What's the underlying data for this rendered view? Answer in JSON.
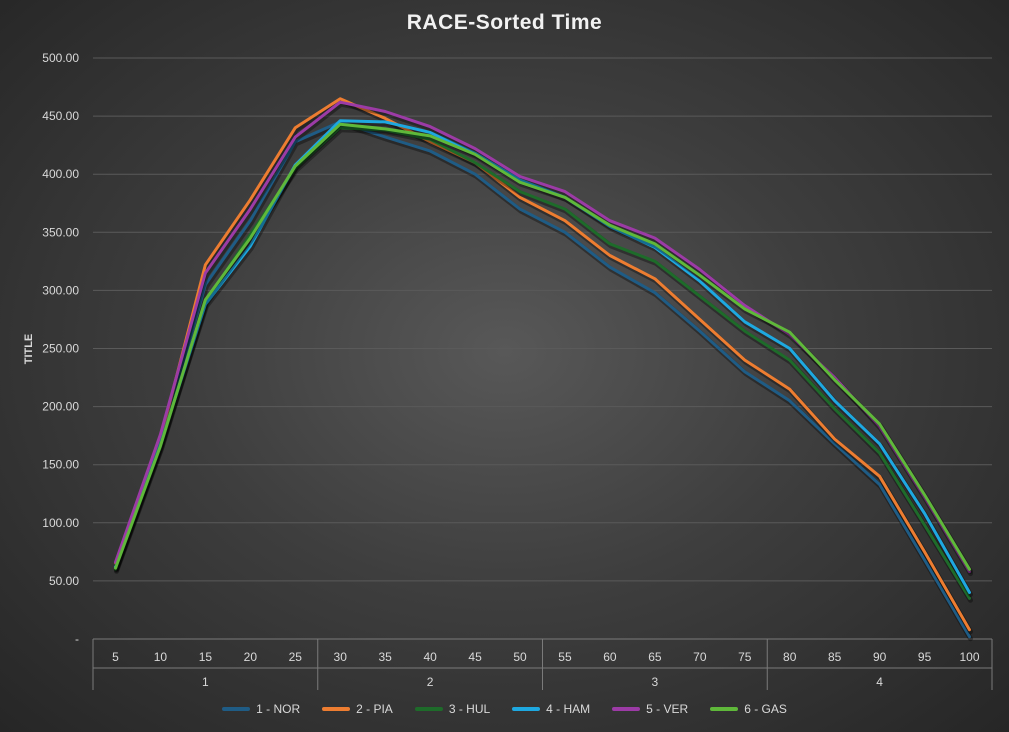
{
  "chart_data": {
    "type": "line",
    "title": "RACE-Sorted Time",
    "ylabel": "TITLE",
    "xlabel": "",
    "ylim": [
      0,
      500
    ],
    "y_ticks": [
      "-",
      "50.00",
      "100.00",
      "150.00",
      "200.00",
      "250.00",
      "300.00",
      "350.00",
      "400.00",
      "450.00",
      "500.00"
    ],
    "x": [
      5,
      10,
      15,
      20,
      25,
      30,
      35,
      40,
      45,
      50,
      55,
      60,
      65,
      70,
      75,
      80,
      85,
      90,
      95,
      100
    ],
    "groups": [
      {
        "label": "1",
        "from": 5,
        "to": 25
      },
      {
        "label": "2",
        "from": 30,
        "to": 50
      },
      {
        "label": "3",
        "from": 55,
        "to": 75
      },
      {
        "label": "4",
        "from": 80,
        "to": 100
      }
    ],
    "grid": true,
    "legend_position": "bottom",
    "series": [
      {
        "name": "1 - NOR",
        "color": "#1f5c85",
        "values": [
          62,
          168,
          305,
          360,
          428,
          445,
          432,
          420,
          400,
          370,
          350,
          320,
          298,
          265,
          230,
          205,
          168,
          133,
          68,
          2
        ]
      },
      {
        "name": "2 - PIA",
        "color": "#ed7d31",
        "values": [
          65,
          172,
          322,
          378,
          440,
          465,
          448,
          428,
          410,
          380,
          360,
          330,
          310,
          275,
          240,
          215,
          172,
          140,
          75,
          8
        ]
      },
      {
        "name": "3 - HUL",
        "color": "#1e6b2a",
        "values": [
          60,
          165,
          290,
          348,
          405,
          440,
          438,
          430,
          410,
          385,
          370,
          340,
          325,
          295,
          265,
          240,
          198,
          160,
          98,
          35
        ]
      },
      {
        "name": "4 - HAM",
        "color": "#1ea8e0",
        "values": [
          62,
          168,
          288,
          338,
          408,
          446,
          445,
          436,
          418,
          395,
          380,
          355,
          337,
          308,
          273,
          250,
          205,
          168,
          108,
          40
        ]
      },
      {
        "name": "5 - VER",
        "color": "#9c3ba6",
        "values": [
          66,
          176,
          315,
          370,
          432,
          462,
          454,
          441,
          422,
          398,
          385,
          360,
          345,
          318,
          287,
          262,
          225,
          183,
          122,
          58
        ]
      },
      {
        "name": "6 - GAS",
        "color": "#5fb83a",
        "values": [
          61,
          166,
          292,
          345,
          407,
          443,
          439,
          433,
          417,
          393,
          380,
          356,
          340,
          313,
          284,
          264,
          223,
          185,
          124,
          60
        ]
      }
    ]
  }
}
